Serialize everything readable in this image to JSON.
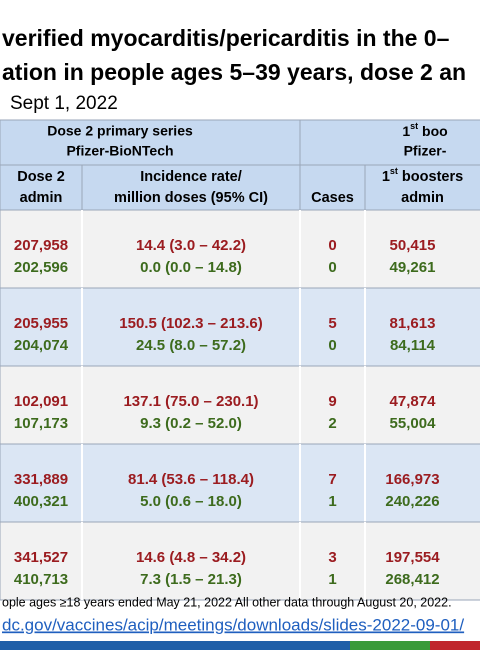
{
  "title_lines": [
    "verified myocarditis/pericarditis in the 0–",
    "ation in people ages 5–39 years, dose 2 an"
  ],
  "date": "Sept 1, 2022",
  "table": {
    "group_headers": [
      {
        "lines": [
          "Dose 2 primary series",
          "Pfizer-BioNTech"
        ]
      },
      {
        "lines": [
          [
            "1",
            "st",
            " boo"
          ],
          "Pfizer-"
        ]
      }
    ],
    "columns": [
      [
        "Dose 2",
        "admin"
      ],
      [
        "Incidence rate/",
        "million doses (95% CI)"
      ],
      [
        "Cases"
      ],
      [
        [
          "1",
          "st",
          " boosters"
        ],
        "admin"
      ]
    ],
    "rows": [
      [
        [
          "207,958",
          "14.4 (3.0 – 42.2)",
          "0",
          "50,415"
        ],
        [
          "202,596",
          "0.0 (0.0 – 14.8)",
          "0",
          "49,261"
        ]
      ],
      [
        [
          "205,955",
          "150.5 (102.3 – 213.6)",
          "5",
          "81,613"
        ],
        [
          "204,074",
          "24.5 (8.0 – 57.2)",
          "0",
          "84,114"
        ]
      ],
      [
        [
          "102,091",
          "137.1 (75.0 – 230.1)",
          "9",
          "47,874"
        ],
        [
          "107,173",
          "9.3 (0.2 – 52.0)",
          "2",
          "55,004"
        ]
      ],
      [
        [
          "331,889",
          "81.4 (53.6 – 118.4)",
          "7",
          "166,973"
        ],
        [
          "400,321",
          "5.0 (0.6 – 18.0)",
          "1",
          "240,226"
        ]
      ],
      [
        [
          "341,527",
          "14.6 (4.8 – 34.2)",
          "3",
          "197,554"
        ],
        [
          "410,713",
          "7.3 (1.5 – 21.3)",
          "1",
          "268,412"
        ]
      ]
    ]
  },
  "footnote": "ople ages ≥18 years ended May 21, 2022 All other data through August 20, 2022.",
  "source_url": "dc.gov/vaccines/acip/meetings/downloads/slides-2022-09-01/"
}
